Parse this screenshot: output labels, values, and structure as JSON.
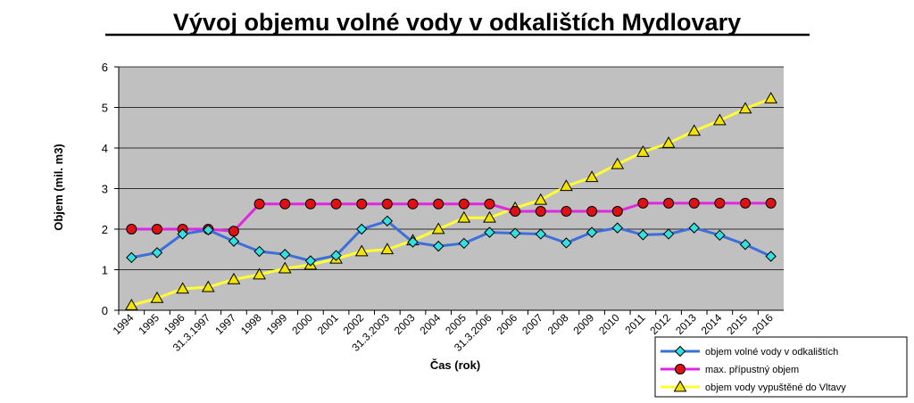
{
  "chart_data": {
    "type": "line",
    "title": "Vývoj objemu volné vody v odkalištích Mydlovary",
    "xlabel": "Čas (rok)",
    "ylabel": "Objem (mil. m3)",
    "ylim": [
      0,
      6
    ],
    "yticks": [
      "0",
      "1",
      "2",
      "3",
      "4",
      "5",
      "6"
    ],
    "grid": true,
    "legend_position": "bottom-right",
    "categories": [
      "1994",
      "1995",
      "1996",
      "31.3.1997",
      "1997",
      "1998",
      "1999",
      "2000",
      "2001",
      "2002",
      "31.3.2003",
      "2003",
      "2004",
      "2005",
      "31.3.2006",
      "2006",
      "2007",
      "2008",
      "2009",
      "2010",
      "2011",
      "2012",
      "2013",
      "2014",
      "2015",
      "2016"
    ],
    "colors": {
      "plot_background": "#c0c0c0",
      "gridline": "#000000"
    },
    "series": [
      {
        "name": "objem volné vody v odkalištích",
        "color": "#3d6fdb",
        "marker": "diamond",
        "marker_color": "#33e0e0",
        "values": [
          1.3,
          1.42,
          1.88,
          1.98,
          1.7,
          1.45,
          1.38,
          1.22,
          1.35,
          2.0,
          2.2,
          1.68,
          1.58,
          1.65,
          1.92,
          1.9,
          1.88,
          1.66,
          1.92,
          2.03,
          1.86,
          1.88,
          2.03,
          1.85,
          1.62,
          1.33
        ]
      },
      {
        "name": "max. přípustný objem",
        "color": "#e026e0",
        "marker": "circle",
        "marker_color": "#dd1111",
        "values": [
          2.0,
          2.0,
          2.0,
          2.0,
          1.95,
          2.62,
          2.62,
          2.62,
          2.62,
          2.62,
          2.62,
          2.62,
          2.62,
          2.62,
          2.62,
          2.44,
          2.44,
          2.44,
          2.44,
          2.44,
          2.64,
          2.64,
          2.64,
          2.64,
          2.64,
          2.64
        ]
      },
      {
        "name": "objem vody vypuštěné do Vltavy",
        "color": "#ffff33",
        "marker": "triangle",
        "marker_color": "#f4e300",
        "values": [
          0.12,
          0.3,
          0.53,
          0.57,
          0.76,
          0.88,
          1.03,
          1.12,
          1.27,
          1.45,
          1.5,
          1.72,
          2.0,
          2.28,
          2.28,
          2.52,
          2.72,
          3.06,
          3.28,
          3.6,
          3.9,
          4.12,
          4.42,
          4.68,
          4.97,
          5.22
        ]
      }
    ]
  }
}
